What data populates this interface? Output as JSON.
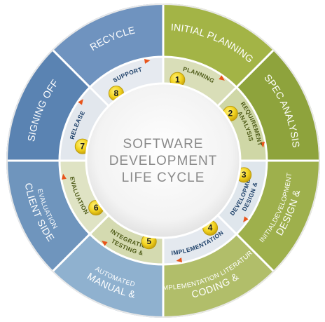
{
  "center": {
    "line1": "SOFTWARE",
    "line2": "DEVELOPMENT",
    "line3": "LIFE CYCLE"
  },
  "outer_segments": [
    {
      "label": "INITIAL PLANNING",
      "color": "#a3b446",
      "text_color": "#ffffff"
    },
    {
      "label": "SPEC ANALYSIS",
      "color": "#8ea33c",
      "text_color": "#ffffff"
    },
    {
      "label": "DESIGN &",
      "sublabel": "INITIALDEVELOPMENT",
      "color": "#9eb04c",
      "text_color": "#ffffff"
    },
    {
      "label": "CODING &",
      "sublabel": "IMPLEMENTATION LITERATURE",
      "color": "#b1be6a",
      "text_color": "#ffffff"
    },
    {
      "label": "MANUAL &",
      "sublabel": "AUTOMATED",
      "color": "#8fb1cf",
      "text_color": "#ffffff"
    },
    {
      "label": "CLIENT SIDE",
      "sublabel": "EVALUATION",
      "color": "#6f95bd",
      "text_color": "#ffffff"
    },
    {
      "label": "SIGNING OFF",
      "color": "#5a83b2",
      "text_color": "#ffffff"
    },
    {
      "label": "RECYCLE",
      "color": "#6f93bf",
      "text_color": "#ffffff"
    }
  ],
  "inner_segments": [
    {
      "number": "1",
      "label": "PLANNING",
      "color": "#d9deb8",
      "text_color": "#4d5a16"
    },
    {
      "number": "2",
      "label": "REQUIREMENT",
      "sublabel": "ANALYSIS",
      "color": "#cfd7a6",
      "text_color": "#4d5a16"
    },
    {
      "number": "3",
      "label": "DESIGN &",
      "sublabel": "DEVELOPMENT",
      "color": "#dfe6ec",
      "text_color": "#1c3f68"
    },
    {
      "number": "4",
      "label": "IMPLEMENTATION",
      "color": "#e4e9ef",
      "text_color": "#1c3f68"
    },
    {
      "number": "5",
      "label": "TESTING &",
      "sublabel": "INTEGRATION",
      "color": "#d4dab0",
      "text_color": "#4d5a16"
    },
    {
      "number": "6",
      "label": "EVALUATION",
      "color": "#dfe3c4",
      "text_color": "#4d5a16"
    },
    {
      "number": "7",
      "label": "RELEASE",
      "color": "#e2e7ed",
      "text_color": "#1c3f68"
    },
    {
      "number": "8",
      "label": "SUPPORT",
      "color": "#e6eaf0",
      "text_color": "#1c3f68"
    }
  ],
  "colors": {
    "badge_fill": "#f2d21e",
    "badge_stroke": "#b99a0c",
    "arrow": "#e8541a",
    "divider": "#ffffff",
    "center_fill": "#f6f6f6"
  }
}
